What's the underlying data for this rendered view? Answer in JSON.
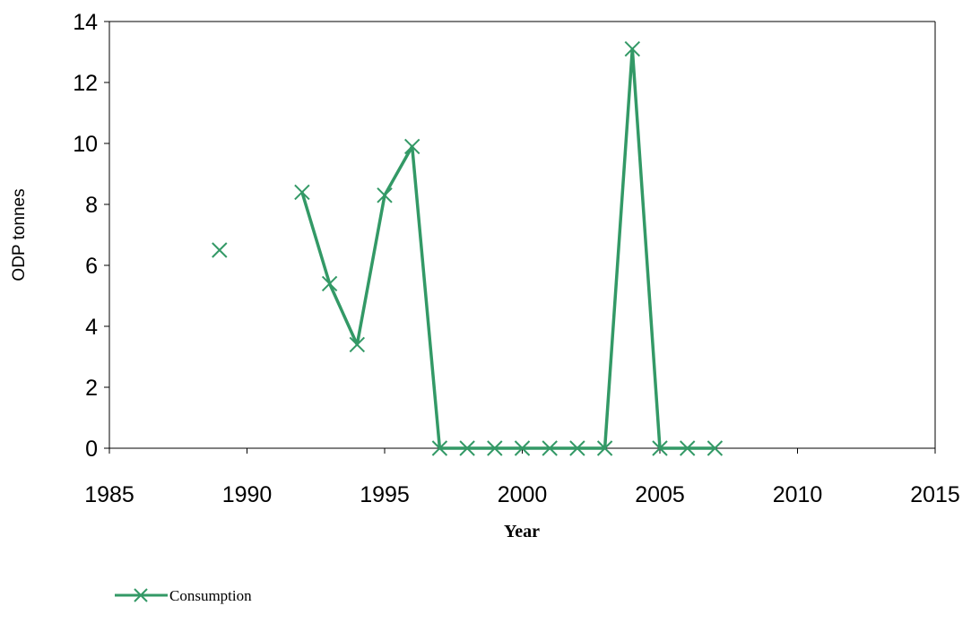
{
  "chart_data": {
    "type": "line",
    "title": "",
    "xlabel": "Year",
    "ylabel": "ODP tonnes",
    "xlim": [
      1985,
      2015
    ],
    "ylim": [
      0,
      14
    ],
    "x_ticks": [
      1985,
      1990,
      1995,
      2000,
      2005,
      2010,
      2015
    ],
    "y_ticks": [
      0,
      2,
      4,
      6,
      8,
      10,
      12,
      14
    ],
    "grid": false,
    "legend_position": "bottom-left",
    "series": [
      {
        "name": "Consumption",
        "color": "#339966",
        "marker": "x",
        "points": [
          {
            "x": 1989,
            "y": 6.5
          },
          {
            "x": 1992,
            "y": 8.4
          },
          {
            "x": 1993,
            "y": 5.4
          },
          {
            "x": 1994,
            "y": 3.4
          },
          {
            "x": 1995,
            "y": 8.3
          },
          {
            "x": 1996,
            "y": 9.9
          },
          {
            "x": 1997,
            "y": 0
          },
          {
            "x": 1998,
            "y": 0
          },
          {
            "x": 1999,
            "y": 0
          },
          {
            "x": 2000,
            "y": 0
          },
          {
            "x": 2001,
            "y": 0
          },
          {
            "x": 2002,
            "y": 0
          },
          {
            "x": 2003,
            "y": 0
          },
          {
            "x": 2004,
            "y": 13.1
          },
          {
            "x": 2005,
            "y": 0
          },
          {
            "x": 2006,
            "y": 0
          },
          {
            "x": 2007,
            "y": 0
          }
        ]
      }
    ]
  }
}
